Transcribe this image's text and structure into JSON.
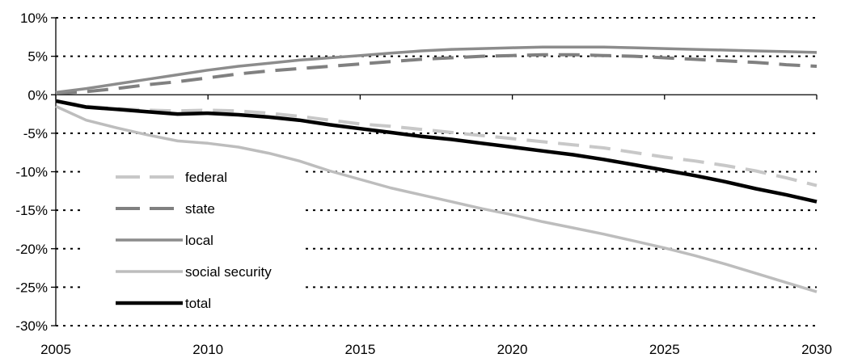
{
  "chart_data": {
    "type": "line",
    "title": "",
    "xlabel": "",
    "ylabel": "",
    "xlim": [
      2005,
      2030
    ],
    "ylim": [
      -30,
      10
    ],
    "grid": "horizontal dotted",
    "legend_position": "left",
    "x_ticks": [
      "2005",
      "2010",
      "2015",
      "2020",
      "2025",
      "2030"
    ],
    "y_ticks": [
      "10%",
      "5%",
      "0%",
      "-5%",
      "-10%",
      "-15%",
      "-20%",
      "-25%",
      "-30%"
    ],
    "x": [
      2005,
      2006,
      2007,
      2008,
      2009,
      2010,
      2011,
      2012,
      2013,
      2014,
      2015,
      2016,
      2017,
      2018,
      2019,
      2020,
      2021,
      2022,
      2023,
      2024,
      2025,
      2026,
      2027,
      2028,
      2029,
      2030
    ],
    "series": [
      {
        "name": "federal",
        "color": "#c8c8c8",
        "style": "dashed",
        "values": [
          -0.8,
          -1.5,
          -1.8,
          -2.0,
          -2.1,
          -2.0,
          -2.1,
          -2.4,
          -2.8,
          -3.3,
          -3.8,
          -4.1,
          -4.5,
          -4.9,
          -5.3,
          -5.7,
          -6.1,
          -6.5,
          -6.9,
          -7.5,
          -8.1,
          -8.6,
          -9.2,
          -9.9,
          -10.8,
          -11.8
        ]
      },
      {
        "name": "state",
        "color": "#808080",
        "style": "dashed",
        "values": [
          0.2,
          0.4,
          0.8,
          1.3,
          1.7,
          2.2,
          2.7,
          3.1,
          3.4,
          3.7,
          4.0,
          4.3,
          4.6,
          4.8,
          5.0,
          5.1,
          5.2,
          5.2,
          5.1,
          5.0,
          4.8,
          4.6,
          4.4,
          4.2,
          3.9,
          3.7
        ]
      },
      {
        "name": "local",
        "color": "#8c8c8c",
        "style": "solid",
        "values": [
          0.3,
          0.8,
          1.4,
          2.0,
          2.6,
          3.2,
          3.7,
          4.1,
          4.5,
          4.8,
          5.1,
          5.4,
          5.7,
          5.9,
          6.0,
          6.1,
          6.2,
          6.2,
          6.2,
          6.1,
          6.0,
          5.9,
          5.8,
          5.7,
          5.6,
          5.5
        ]
      },
      {
        "name": "social security",
        "color": "#bdbdbd",
        "style": "solid",
        "values": [
          -1.5,
          -3.3,
          -4.3,
          -5.2,
          -6.0,
          -6.3,
          -6.8,
          -7.6,
          -8.6,
          -9.9,
          -11.0,
          -12.1,
          -13.0,
          -13.9,
          -14.8,
          -15.6,
          -16.5,
          -17.3,
          -18.1,
          -19.0,
          -19.9,
          -20.9,
          -22.0,
          -23.2,
          -24.4,
          -25.6
        ]
      },
      {
        "name": "total",
        "color": "#000000",
        "style": "solid",
        "values": [
          -0.8,
          -1.6,
          -1.9,
          -2.2,
          -2.5,
          -2.4,
          -2.6,
          -2.9,
          -3.3,
          -3.9,
          -4.4,
          -4.9,
          -5.4,
          -5.8,
          -6.3,
          -6.8,
          -7.3,
          -7.8,
          -8.4,
          -9.1,
          -9.8,
          -10.5,
          -11.3,
          -12.2,
          -13.0,
          -13.9
        ]
      }
    ]
  }
}
